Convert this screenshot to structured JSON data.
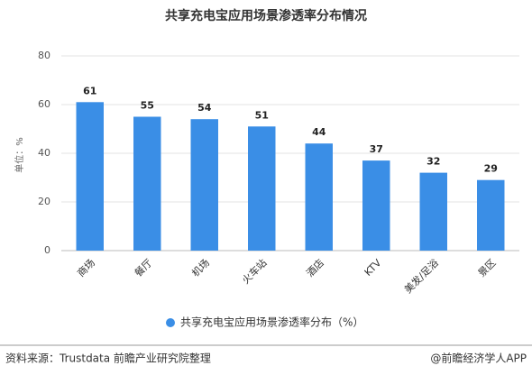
{
  "chart_data": {
    "type": "bar",
    "title": "共享充电宝应用场景渗透率分布情况",
    "y_label": "单位：%",
    "categories": [
      "商场",
      "餐厅",
      "机场",
      "火车站",
      "酒店",
      "KTV",
      "美发/足浴",
      "景区"
    ],
    "series": [
      {
        "name": "共享充电宝应用场景渗透率分布（%）",
        "color": "#3a8ee6",
        "values": [
          61,
          55,
          54,
          51,
          44,
          37,
          32,
          29
        ]
      }
    ],
    "ylim": [
      0,
      80
    ],
    "yticks": [
      0,
      20,
      40,
      60,
      80
    ],
    "grid": true,
    "legend": "bottom"
  },
  "footer": {
    "source": "资料来源：Trustdata 前瞻产业研究院整理",
    "credit": "@前瞻经济学人APP"
  }
}
